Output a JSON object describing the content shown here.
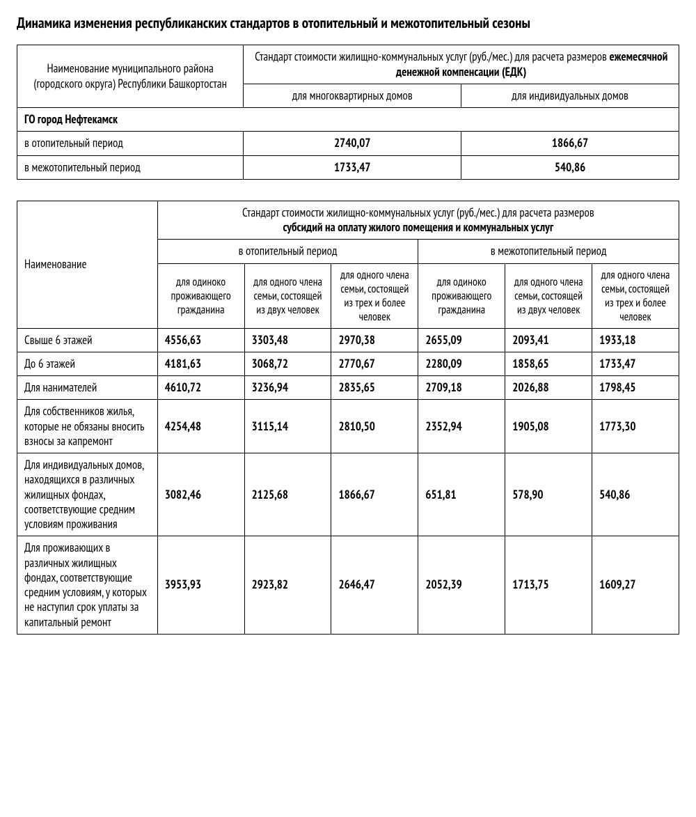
{
  "title": "Динамика изменения республиканских стандартов в отопительный и межотопительный сезоны",
  "table1": {
    "colname": "Наименование муниципального района (городского округа) Республики Башкортостан",
    "super_prefix": "Стандарт стоимости жилищно-коммунальных услуг (руб./мес.) для расчета размеров ",
    "super_bold": "ежемесячной денежной компенсации (ЕДК)",
    "sub1": "для многоквартирных домов",
    "sub2": "для индивидуальных домов",
    "section": "ГО город Нефтекамск",
    "rows": [
      {
        "label": "в отопительный период",
        "v1": "2740,07",
        "v2": "1866,67"
      },
      {
        "label": "в межотопительный период",
        "v1": "1733,47",
        "v2": "540,86"
      }
    ]
  },
  "table2": {
    "colname": "Наименование",
    "super_prefix": "Стандарт стоимости жилищно-коммунальных услуг (руб./мес.) для расчета размеров ",
    "super_bold": "субсидий на оплату жилого помещения и коммунальных услуг",
    "period1": "в отопительный период",
    "period2": "в межотопительный период",
    "sub_a": "для одиноко проживающего гражданина",
    "sub_b": "для одного члена семьи, состоящей из двух человек",
    "sub_c": "для одного члена семьи, состоящей из трех и более человек",
    "rows": [
      {
        "label": "Свыше 6 этажей",
        "v": [
          "4556,63",
          "3303,48",
          "2970,38",
          "2655,09",
          "2093,41",
          "1933,18"
        ]
      },
      {
        "label": "До 6 этажей",
        "v": [
          "4181,63",
          "3068,72",
          "2770,67",
          "2280,09",
          "1858,65",
          "1733,47"
        ]
      },
      {
        "label": "Для нанимателей",
        "v": [
          "4610,72",
          "3236,94",
          "2835,65",
          "2709,18",
          "2026,88",
          "1798,45"
        ]
      },
      {
        "label": "Для собственников жилья, которые не обязаны вносить взносы за капремонт",
        "v": [
          "4254,48",
          "3115,14",
          "2810,50",
          "2352,94",
          "1905,08",
          "1773,30"
        ]
      },
      {
        "label": "Для индивидуальных домов, находящихся в различных жилищных фондах, соответствующие средним условиям проживания",
        "v": [
          "3082,46",
          "2125,68",
          "1866,67",
          "651,81",
          "578,90",
          "540,86"
        ]
      },
      {
        "label": "Для проживающих в различных жилищных фондах, соответствующие средним условиям, у которых не наступил срок уплаты за капитальный ремонт",
        "v": [
          "3953,93",
          "2923,82",
          "2646,47",
          "2052,39",
          "1713,75",
          "1609,27"
        ]
      }
    ]
  }
}
